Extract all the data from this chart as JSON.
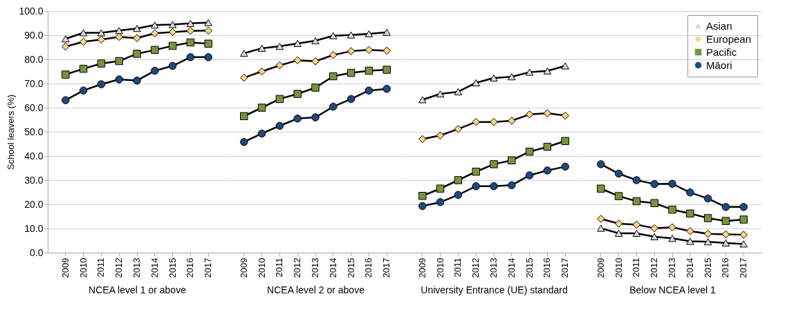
{
  "chart_data": [
    {
      "type": "line",
      "categories": [
        "2009",
        "2010",
        "2011",
        "2012",
        "2013",
        "2014",
        "2015",
        "2016",
        "2017"
      ],
      "xlabel": "NCEA level 1 or above",
      "ylabel": "School leavers (%)",
      "ylim": [
        0,
        100
      ],
      "yticks": [
        {
          "value": 0,
          "label": "0.0"
        },
        {
          "value": 10,
          "label": "10.0"
        },
        {
          "value": 20,
          "label": "20.0"
        },
        {
          "value": 30,
          "label": "30.0"
        },
        {
          "value": 40,
          "label": "40.0"
        },
        {
          "value": 50,
          "label": "50.0"
        },
        {
          "value": 60,
          "label": "60.0"
        },
        {
          "value": 70,
          "label": "70.0"
        },
        {
          "value": 80,
          "label": "80.0"
        },
        {
          "value": 90,
          "label": "90.0"
        },
        {
          "value": 100,
          "label": "100.0"
        }
      ],
      "grid": "y",
      "series": [
        {
          "color": "#d9d9d9",
          "marker": "triangle",
          "values": [
            88.5,
            91,
            91,
            91.9,
            92.8,
            94.2,
            94.4,
            94.9,
            95.2
          ]
        },
        {
          "color": "#fcd581",
          "marker": "diamond",
          "values": [
            85.3,
            87.3,
            88.2,
            89.3,
            88.8,
            90.8,
            91.3,
            91.8,
            91.9
          ]
        },
        {
          "color": "#77933c",
          "marker": "square",
          "values": [
            73.7,
            76.1,
            78.3,
            79.3,
            82.3,
            83.9,
            85.6,
            87,
            86.5
          ]
        },
        {
          "color": "#1f497d",
          "marker": "circle",
          "values": [
            63.1,
            67.1,
            69.7,
            71.7,
            71.2,
            75.3,
            77.3,
            80.9,
            80.9
          ]
        }
      ]
    },
    {
      "type": "line",
      "categories": [
        "2009",
        "2010",
        "2011",
        "2012",
        "2013",
        "2014",
        "2015",
        "2016",
        "2017"
      ],
      "xlabel": "NCEA level 2 or above",
      "ylim": [
        0,
        100
      ],
      "yticks": [
        0,
        10,
        20,
        30,
        40,
        50,
        60,
        70,
        80,
        90,
        100
      ],
      "grid": "y",
      "tick_labels": "x",
      "series": [
        {
          "color": "#d9d9d9",
          "marker": "triangle",
          "values": [
            82.5,
            84.6,
            85.4,
            86.6,
            87.7,
            89.8,
            90.1,
            90.6,
            91.2
          ]
        },
        {
          "color": "#fcd581",
          "marker": "diamond",
          "values": [
            72.4,
            75,
            77.5,
            79.6,
            79.2,
            81.8,
            83.4,
            83.9,
            83.6
          ]
        },
        {
          "color": "#77933c",
          "marker": "square",
          "values": [
            56.5,
            60,
            63.6,
            65.7,
            68.3,
            73,
            74.4,
            75.3,
            75.7
          ]
        },
        {
          "color": "#1f497d",
          "marker": "circle",
          "values": [
            45.8,
            49.3,
            52.5,
            55.5,
            56,
            60.4,
            63.6,
            67.1,
            67.8
          ]
        }
      ]
    },
    {
      "type": "line",
      "categories": [
        "2009",
        "2010",
        "2011",
        "2012",
        "2013",
        "2014",
        "2015",
        "2016",
        "2017"
      ],
      "xlabel": "University Entrance (UE) standard",
      "ylim": [
        0,
        100
      ],
      "yticks": [
        0,
        10,
        20,
        30,
        40,
        50,
        60,
        70,
        80,
        90,
        100
      ],
      "grid": "y",
      "tick_labels": "x",
      "series": [
        {
          "color": "#d9d9d9",
          "marker": "triangle",
          "values": [
            63.3,
            65.7,
            66.6,
            70.3,
            72.3,
            72.8,
            74.7,
            75.2,
            77.3
          ]
        },
        {
          "color": "#fcd581",
          "marker": "diamond",
          "values": [
            47,
            48.5,
            51.2,
            54.1,
            54.1,
            54.6,
            57.2,
            57.7,
            56.7
          ]
        },
        {
          "color": "#77933c",
          "marker": "square",
          "values": [
            23.5,
            26.5,
            30,
            33.5,
            36.6,
            38.2,
            41.8,
            43.8,
            46.2
          ]
        },
        {
          "color": "#1f497d",
          "marker": "circle",
          "values": [
            19.3,
            20.9,
            23.9,
            27.5,
            27.5,
            27.9,
            32,
            34,
            35.6
          ]
        }
      ]
    },
    {
      "type": "line",
      "categories": [
        "2009",
        "2010",
        "2011",
        "2012",
        "2013",
        "2014",
        "2015",
        "2016",
        "2017"
      ],
      "xlabel": "Below NCEA level 1",
      "ylim": [
        0,
        100
      ],
      "yticks": [
        0,
        10,
        20,
        30,
        40,
        50,
        60,
        70,
        80,
        90,
        100
      ],
      "grid": "y",
      "tick_labels": "x",
      "legend": "top right",
      "series": [
        {
          "name": "Asian",
          "color": "#d9d9d9",
          "marker": "triangle",
          "values": [
            10.1,
            8,
            8,
            6.6,
            5.9,
            4.7,
            4.5,
            4,
            3.6
          ]
        },
        {
          "name": "European",
          "color": "#fcd581",
          "marker": "diamond",
          "values": [
            14,
            12,
            11.6,
            10.1,
            10.5,
            8.9,
            7.8,
            7.6,
            7.4
          ]
        },
        {
          "name": "Pacific",
          "color": "#77933c",
          "marker": "square",
          "values": [
            26.5,
            23.4,
            21.3,
            20.5,
            17.8,
            16.2,
            14.3,
            13.1,
            13.7
          ]
        },
        {
          "name": "Māori",
          "color": "#1f497d",
          "marker": "circle",
          "values": [
            36.6,
            32.7,
            30,
            28.4,
            28.5,
            24.9,
            22.4,
            18.9,
            18.9
          ]
        }
      ]
    }
  ]
}
